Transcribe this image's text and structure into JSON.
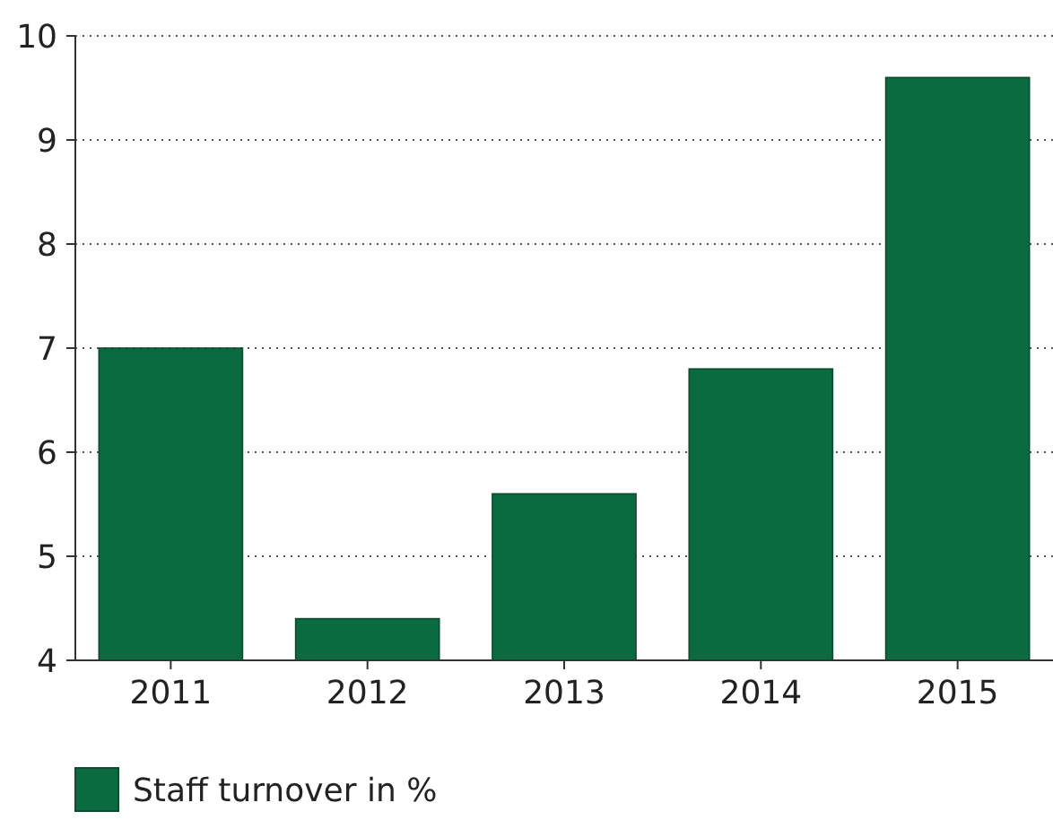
{
  "chart_data": {
    "type": "bar",
    "categories": [
      "2011",
      "2012",
      "2013",
      "2014",
      "2015"
    ],
    "series": [
      {
        "name": "Staff turnover in %",
        "color": "#0a6a40",
        "values": [
          7.0,
          4.4,
          5.6,
          6.8,
          9.6
        ]
      }
    ],
    "ylim": [
      4,
      10
    ],
    "yticks": [
      4,
      5,
      6,
      7,
      8,
      9,
      10
    ],
    "grid": "y",
    "legend": "bottom left"
  }
}
